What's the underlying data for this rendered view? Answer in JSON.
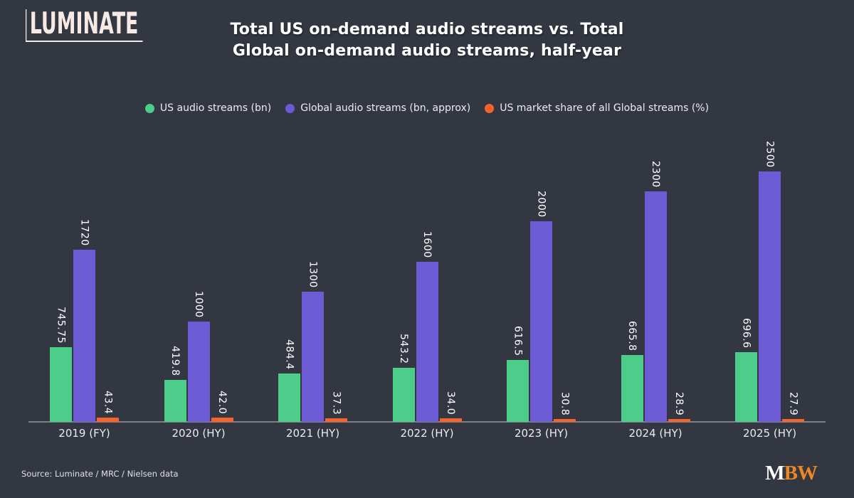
{
  "logo": {
    "text": "LUMINATE"
  },
  "title": {
    "line1": "Total US on-demand audio streams vs. Total",
    "line2": "Global on-demand audio streams, half-year"
  },
  "legend": [
    {
      "key": "us-streams",
      "label": "US audio streams (bn)",
      "color": "#4CCE8A"
    },
    {
      "key": "global-streams",
      "label": "Global audio streams (bn, approx)",
      "color": "#6C5BD4"
    },
    {
      "key": "market-share",
      "label": "US market share of all Global streams (%)",
      "color": "#F8622B"
    }
  ],
  "chart_data": {
    "type": "bar",
    "title": "Total US on-demand audio streams vs. Total Global on-demand audio streams, half-year",
    "categories": [
      "2019 (FY)",
      "2020 (HY)",
      "2021 (HY)",
      "2022 (HY)",
      "2023 (HY)",
      "2024 (HY)",
      "2025 (HY)"
    ],
    "series": [
      {
        "key": "us-streams",
        "name": "US audio streams (bn)",
        "color": "#4CCE8A",
        "values": [
          745.75,
          419.8,
          484.4,
          543.2,
          616.5,
          665.8,
          696.6
        ],
        "labels": [
          "745.75",
          "419.8",
          "484.4",
          "543.2",
          "616.5",
          "665.8",
          "696.6"
        ]
      },
      {
        "key": "global-streams",
        "name": "Global audio streams (bn, approx)",
        "color": "#6C5BD4",
        "values": [
          1720,
          1000,
          1300,
          1600,
          2000,
          2300,
          2500
        ],
        "labels": [
          "1720",
          "1000",
          "1300",
          "1600",
          "2000",
          "2300",
          "2500"
        ]
      },
      {
        "key": "market-share",
        "name": "US market share of all Global streams (%)",
        "color": "#F8622B",
        "values": [
          43.4,
          42.0,
          37.3,
          34.0,
          30.8,
          28.9,
          27.9
        ],
        "labels": [
          "43.4",
          "42.0",
          "37.3",
          "34.0",
          "30.8",
          "28.9",
          "27.9"
        ]
      }
    ],
    "ylim": [
      0,
      2600
    ],
    "grid": false,
    "y_axis_visible": false,
    "legend_position": "top",
    "bar_value_labels_rotation": "vertical"
  },
  "footer": {
    "source": "Source: Luminate / MRC / Nielsen data",
    "brand": {
      "part1": "M",
      "part2": "BW",
      "part2_color": "#EE8622"
    }
  },
  "colors": {
    "background": "#323742",
    "axis_line": "#7B8089",
    "title_text": "#FFFFFF",
    "value_label_text": "#FFFFFF",
    "category_label_text": "#E9EBEE",
    "legend_text": "#ECEDEF",
    "source_text": "#DFE1E5",
    "logo_text": "#F7E9E4",
    "green": "#4CCE8A",
    "purple": "#6C5BD4",
    "orange": "#F8622B"
  }
}
